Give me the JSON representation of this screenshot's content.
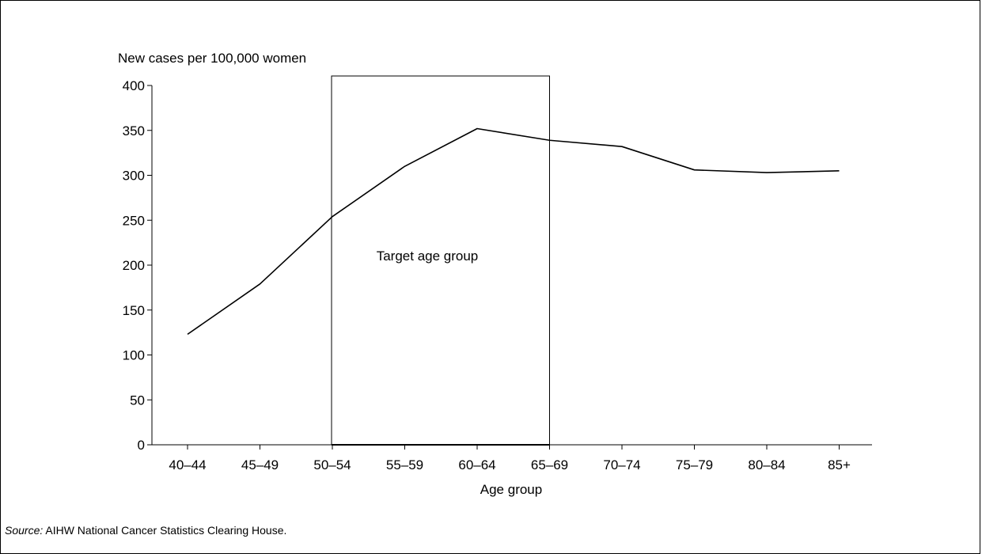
{
  "chart_data": {
    "type": "line",
    "title": "",
    "ylabel": "New cases per 100,000 women",
    "xlabel": "Age group",
    "categories": [
      "40–44",
      "45–49",
      "50–54",
      "55–59",
      "60–64",
      "65–69",
      "70–74",
      "75–79",
      "80–84",
      "85+"
    ],
    "series": [
      {
        "values": [
          123,
          179,
          254,
          310,
          352,
          339,
          332,
          306,
          303,
          305
        ]
      }
    ],
    "ylim": [
      0,
      400
    ],
    "yticks": [
      0,
      50,
      100,
      150,
      200,
      250,
      300,
      350,
      400
    ],
    "grid": false,
    "annotation": {
      "text": "Target age group",
      "from_category": "50–54",
      "to_category": "65–69"
    },
    "line_color": "#000000"
  },
  "source": {
    "label": "Source:",
    "text": " AIHW National Cancer Statistics Clearing House."
  }
}
